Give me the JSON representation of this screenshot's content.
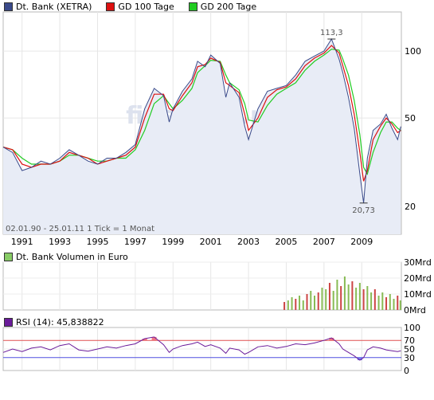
{
  "legend_price": [
    {
      "label": "Dt. Bank (XETRA)",
      "color": "#3a4a8a"
    },
    {
      "label": "GD 100 Tage",
      "color": "#dd1111"
    },
    {
      "label": "GD 200 Tage",
      "color": "#22cc22"
    }
  ],
  "legend_volume": {
    "label": "Dt. Bank Volumen in Euro",
    "color": "#88cc66"
  },
  "legend_rsi": {
    "label": "RSI (14): 45,838822",
    "color": "#6a1b9a"
  },
  "range_note": "02.01.90 - 25.01.11   1 Tick = 1 Monat",
  "annotations": {
    "high": "113,3",
    "low": "20,73"
  },
  "watermark": "finanzen.net",
  "chart_data": [
    {
      "type": "line",
      "title": "Dt. Bank (XETRA)",
      "scale": "log",
      "ylim": [
        15,
        150
      ],
      "xlim": [
        1990.0,
        2011.1
      ],
      "y_ticks": [
        "100",
        "50",
        "20"
      ],
      "y_tick_values": [
        100,
        50,
        20
      ],
      "x_ticks": [
        "1991",
        "1993",
        "1995",
        "1997",
        "1999",
        "2001",
        "2003",
        "2005",
        "2007",
        "2009"
      ],
      "x_tick_values": [
        1991,
        1993,
        1995,
        1997,
        1999,
        2001,
        2003,
        2005,
        2007,
        2009
      ],
      "grid": true,
      "series": [
        {
          "name": "Dt. Bank (XETRA)",
          "x": [
            1990.0,
            1990.5,
            1991.0,
            1991.5,
            1992.0,
            1992.5,
            1993.0,
            1993.5,
            1994.0,
            1994.5,
            1995.0,
            1995.5,
            1996.0,
            1996.5,
            1997.0,
            1997.5,
            1998.0,
            1998.5,
            1998.8,
            1999.0,
            1999.5,
            2000.0,
            2000.3,
            2000.7,
            2001.0,
            2001.5,
            2001.8,
            2002.0,
            2002.5,
            2002.8,
            2003.0,
            2003.5,
            2004.0,
            2004.5,
            2005.0,
            2005.5,
            2006.0,
            2006.5,
            2007.0,
            2007.4,
            2007.8,
            2008.0,
            2008.3,
            2008.6,
            2008.9,
            2009.1,
            2009.3,
            2009.6,
            2010.0,
            2010.3,
            2010.6,
            2010.9,
            2011.07
          ],
          "values": [
            37,
            35,
            29,
            30,
            32,
            31,
            33,
            36,
            34,
            32,
            31,
            33,
            33,
            35,
            38,
            55,
            68,
            63,
            48,
            55,
            66,
            75,
            90,
            85,
            96,
            88,
            62,
            72,
            62,
            46,
            40,
            55,
            66,
            68,
            70,
            78,
            90,
            95,
            100,
            113.3,
            92,
            80,
            62,
            45,
            28,
            20.73,
            33,
            44,
            47,
            52,
            45,
            40,
            45.8
          ]
        },
        {
          "name": "GD 100 Tage",
          "x": [
            1990.0,
            1990.5,
            1991.0,
            1991.5,
            1992.0,
            1992.5,
            1993.0,
            1993.5,
            1994.0,
            1994.5,
            1995.0,
            1995.5,
            1996.0,
            1996.5,
            1997.0,
            1997.5,
            1998.0,
            1998.5,
            1998.8,
            1999.0,
            1999.5,
            2000.0,
            2000.3,
            2000.7,
            2001.0,
            2001.5,
            2001.8,
            2002.0,
            2002.5,
            2002.8,
            2003.0,
            2003.5,
            2004.0,
            2004.5,
            2005.0,
            2005.5,
            2006.0,
            2006.5,
            2007.0,
            2007.4,
            2007.8,
            2008.0,
            2008.3,
            2008.6,
            2008.9,
            2009.1,
            2009.3,
            2009.6,
            2010.0,
            2010.3,
            2010.6,
            2010.9,
            2011.07
          ],
          "values": [
            37,
            36,
            31,
            30,
            31,
            31,
            32,
            35,
            34,
            33,
            31,
            32,
            33,
            34,
            37,
            50,
            64,
            64,
            55,
            54,
            63,
            72,
            85,
            87,
            93,
            89,
            72,
            70,
            65,
            52,
            44,
            50,
            62,
            67,
            69,
            75,
            86,
            93,
            98,
            106,
            98,
            86,
            70,
            52,
            35,
            26,
            29,
            40,
            46,
            50,
            47,
            43,
            44
          ]
        },
        {
          "name": "GD 200 Tage",
          "x": [
            1990.0,
            1990.5,
            1991.0,
            1991.5,
            1992.0,
            1992.5,
            1993.0,
            1993.5,
            1994.0,
            1994.5,
            1995.0,
            1995.5,
            1996.0,
            1996.5,
            1997.0,
            1997.5,
            1998.0,
            1998.5,
            1998.8,
            1999.0,
            1999.5,
            2000.0,
            2000.3,
            2000.7,
            2001.0,
            2001.5,
            2001.8,
            2002.0,
            2002.5,
            2002.8,
            2003.0,
            2003.5,
            2004.0,
            2004.5,
            2005.0,
            2005.5,
            2006.0,
            2006.5,
            2007.0,
            2007.4,
            2007.8,
            2008.0,
            2008.3,
            2008.6,
            2008.9,
            2009.1,
            2009.3,
            2009.6,
            2010.0,
            2010.3,
            2010.6,
            2010.9,
            2011.07
          ],
          "values": [
            37,
            36,
            33,
            31,
            31,
            31,
            32,
            34,
            34,
            33,
            32,
            32,
            33,
            33,
            36,
            44,
            58,
            63,
            58,
            55,
            60,
            68,
            80,
            86,
            91,
            90,
            78,
            72,
            67,
            58,
            49,
            48,
            57,
            64,
            68,
            72,
            82,
            90,
            96,
            102,
            101,
            92,
            78,
            60,
            42,
            30,
            28,
            35,
            43,
            48,
            48,
            45,
            44
          ]
        }
      ]
    },
    {
      "type": "bar",
      "title": "Dt. Bank Volumen in Euro",
      "ylim": [
        0,
        30
      ],
      "unit": "Mrd",
      "y_ticks": [
        "30Mrd",
        "20Mrd",
        "10Mrd",
        "0Mrd"
      ],
      "y_tick_values": [
        30,
        20,
        10,
        0
      ],
      "series": [
        {
          "name": "Dt. Bank Volumen in Euro",
          "x": [
            2004.9,
            2005.1,
            2005.3,
            2005.5,
            2005.7,
            2005.9,
            2006.1,
            2006.3,
            2006.5,
            2006.7,
            2006.9,
            2007.1,
            2007.3,
            2007.5,
            2007.7,
            2007.9,
            2008.1,
            2008.3,
            2008.5,
            2008.7,
            2008.9,
            2009.1,
            2009.3,
            2009.5,
            2009.7,
            2009.9,
            2010.1,
            2010.3,
            2010.5,
            2010.7,
            2010.9,
            2011.05
          ],
          "values": [
            5,
            6,
            8,
            7,
            9,
            6,
            10,
            12,
            9,
            11,
            14,
            13,
            17,
            12,
            19,
            15,
            21,
            16,
            18,
            14,
            17,
            13,
            15,
            11,
            13,
            9,
            11,
            8,
            10,
            7,
            9,
            6
          ]
        }
      ]
    },
    {
      "type": "line",
      "title": "RSI (14): 45,838822",
      "ylim": [
        0,
        100
      ],
      "y_ticks": [
        "100",
        "70",
        "50",
        "30",
        "0"
      ],
      "y_tick_values": [
        100,
        70,
        50,
        30,
        0
      ],
      "lines": [
        70,
        30
      ],
      "series": [
        {
          "name": "RSI (14)",
          "x": [
            1990.0,
            1990.5,
            1991.0,
            1991.5,
            1992.0,
            1992.5,
            1993.0,
            1993.5,
            1994.0,
            1994.5,
            1995.0,
            1995.5,
            1996.0,
            1996.5,
            1997.0,
            1997.5,
            1998.0,
            1998.5,
            1998.8,
            1999.0,
            1999.5,
            2000.0,
            2000.3,
            2000.7,
            2001.0,
            2001.5,
            2001.8,
            2002.0,
            2002.5,
            2002.8,
            2003.0,
            2003.5,
            2004.0,
            2004.5,
            2005.0,
            2005.5,
            2006.0,
            2006.5,
            2007.0,
            2007.4,
            2007.8,
            2008.0,
            2008.3,
            2008.6,
            2008.9,
            2009.1,
            2009.3,
            2009.6,
            2010.0,
            2010.3,
            2010.6,
            2010.9,
            2011.07
          ],
          "values": [
            42,
            50,
            44,
            52,
            55,
            48,
            58,
            62,
            48,
            45,
            50,
            55,
            52,
            58,
            62,
            74,
            78,
            60,
            42,
            50,
            58,
            62,
            66,
            56,
            60,
            52,
            40,
            52,
            48,
            38,
            42,
            55,
            58,
            52,
            56,
            62,
            60,
            64,
            70,
            76,
            62,
            50,
            42,
            34,
            24,
            30,
            48,
            55,
            52,
            48,
            46,
            44,
            45.8
          ]
        }
      ]
    }
  ]
}
